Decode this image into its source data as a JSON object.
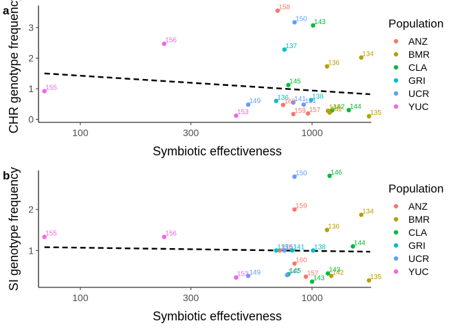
{
  "colors": {
    "ANZ": "#F8766D",
    "BMR": "#B79F00",
    "CLA": "#00BA38",
    "GRI": "#00BFC4",
    "UCR": "#619CFF",
    "YUC": "#F564E3"
  },
  "chart_data": [
    {
      "type": "scatter",
      "panel_tag": "a",
      "xlabel": "Symbiotic effectiveness",
      "ylabel": "CHR genotype frequency",
      "x_scale": "log",
      "xlim": [
        66,
        1800
      ],
      "ylim": [
        -0.1,
        3.72
      ],
      "x_ticks": [
        100,
        300,
        1000
      ],
      "x_tick_labels": [
        "100",
        "300",
        "1000"
      ],
      "y_ticks": [
        0,
        1,
        2,
        3
      ],
      "y_tick_labels": [
        "0",
        "1",
        "2",
        "3"
      ],
      "trend_line": {
        "x": [
          70,
          1780
        ],
        "y": [
          1.5,
          0.82
        ],
        "style": "dashed"
      },
      "legend": {
        "title": "Population",
        "entries": [
          "ANZ",
          "BMR",
          "CLA",
          "GRI",
          "UCR",
          "YUC"
        ],
        "placement": "right"
      },
      "points": [
        {
          "label": "158",
          "pop": "ANZ",
          "x": 710,
          "y": 3.55
        },
        {
          "label": "150",
          "pop": "UCR",
          "x": 840,
          "y": 3.17
        },
        {
          "label": "143",
          "pop": "CLA",
          "x": 1010,
          "y": 3.07
        },
        {
          "label": "156",
          "pop": "YUC",
          "x": 230,
          "y": 2.47
        },
        {
          "label": "137",
          "pop": "GRI",
          "x": 760,
          "y": 2.28
        },
        {
          "label": "134",
          "pop": "BMR",
          "x": 1630,
          "y": 2.02
        },
        {
          "label": "136",
          "pop": "BMR",
          "x": 1160,
          "y": 1.73
        },
        {
          "label": "145",
          "pop": "CLA",
          "x": 790,
          "y": 1.12
        },
        {
          "label": "155",
          "pop": "YUC",
          "x": 70,
          "y": 0.92
        },
        {
          "label": "138",
          "pop": "GRI",
          "x": 990,
          "y": 0.63
        },
        {
          "label": "136",
          "pop": "GRI",
          "x": 700,
          "y": 0.6
        },
        {
          "label": "141",
          "pop": "UCR",
          "x": 830,
          "y": 0.55
        },
        {
          "label": "149",
          "pop": "UCR",
          "x": 530,
          "y": 0.48
        },
        {
          "label": "151",
          "pop": "UCR",
          "x": 920,
          "y": 0.48
        },
        {
          "label": "160",
          "pop": "ANZ",
          "x": 750,
          "y": 0.47
        },
        {
          "label": "142",
          "pop": "CLA",
          "x": 1220,
          "y": 0.29
        },
        {
          "label": "143",
          "pop": "BMR",
          "x": 1170,
          "y": 0.28
        },
        {
          "label": "144",
          "pop": "CLA",
          "x": 1440,
          "y": 0.3
        },
        {
          "label": "142",
          "pop": "BMR",
          "x": 1190,
          "y": 0.22
        },
        {
          "label": "157",
          "pop": "ANZ",
          "x": 960,
          "y": 0.19
        },
        {
          "label": "159",
          "pop": "ANZ",
          "x": 830,
          "y": 0.17
        },
        {
          "label": "153",
          "pop": "YUC",
          "x": 470,
          "y": 0.12
        },
        {
          "label": "135",
          "pop": "BMR",
          "x": 1760,
          "y": 0.1
        }
      ]
    },
    {
      "type": "scatter",
      "panel_tag": "b",
      "xlabel": "Symbiotic effectiveness",
      "ylabel": "SI genotype frequency",
      "x_scale": "log",
      "xlim": [
        66,
        1800
      ],
      "ylim": [
        0.1,
        2.95
      ],
      "x_ticks": [
        100,
        300,
        1000
      ],
      "x_tick_labels": [
        "100",
        "300",
        "1000"
      ],
      "y_ticks": [
        1,
        2
      ],
      "y_tick_labels": [
        "1",
        "2"
      ],
      "trend_line": {
        "x": [
          70,
          1780
        ],
        "y": [
          1.08,
          0.97
        ],
        "style": "dashed"
      },
      "legend": {
        "title": "Population",
        "entries": [
          "ANZ",
          "BMR",
          "CLA",
          "GRI",
          "UCR",
          "YUC"
        ],
        "placement": "right"
      },
      "points": [
        {
          "label": "146",
          "pop": "CLA",
          "x": 1190,
          "y": 2.82
        },
        {
          "label": "150",
          "pop": "UCR",
          "x": 840,
          "y": 2.8
        },
        {
          "label": "159",
          "pop": "ANZ",
          "x": 840,
          "y": 2.0
        },
        {
          "label": "134",
          "pop": "BMR",
          "x": 1630,
          "y": 1.87
        },
        {
          "label": "136",
          "pop": "BMR",
          "x": 1160,
          "y": 1.5
        },
        {
          "label": "155",
          "pop": "YUC",
          "x": 70,
          "y": 1.33
        },
        {
          "label": "156",
          "pop": "YUC",
          "x": 230,
          "y": 1.33
        },
        {
          "label": "144",
          "pop": "CLA",
          "x": 1500,
          "y": 1.1
        },
        {
          "label": "158",
          "pop": "ANZ",
          "x": 725,
          "y": 1.0
        },
        {
          "label": "137",
          "pop": "GRI",
          "x": 700,
          "y": 1.0
        },
        {
          "label": "151",
          "pop": "UCR",
          "x": 760,
          "y": 1.0
        },
        {
          "label": "141",
          "pop": "GRI",
          "x": 820,
          "y": 1.0
        },
        {
          "label": "138",
          "pop": "GRI",
          "x": 1010,
          "y": 1.0
        },
        {
          "label": "160",
          "pop": "ANZ",
          "x": 840,
          "y": 0.68
        },
        {
          "label": "143",
          "pop": "CLA",
          "x": 1170,
          "y": 0.44
        },
        {
          "label": "145",
          "pop": "CLA",
          "x": 790,
          "y": 0.42
        },
        {
          "label": "147",
          "pop": "UCR",
          "x": 780,
          "y": 0.4
        },
        {
          "label": "149",
          "pop": "UCR",
          "x": 530,
          "y": 0.38
        },
        {
          "label": "157",
          "pop": "ANZ",
          "x": 940,
          "y": 0.36
        },
        {
          "label": "142",
          "pop": "BMR",
          "x": 1210,
          "y": 0.38
        },
        {
          "label": "153",
          "pop": "YUC",
          "x": 470,
          "y": 0.34
        },
        {
          "label": "135",
          "pop": "BMR",
          "x": 1760,
          "y": 0.27
        },
        {
          "label": "143",
          "pop": "CLA",
          "x": 1000,
          "y": 0.24
        }
      ]
    }
  ]
}
